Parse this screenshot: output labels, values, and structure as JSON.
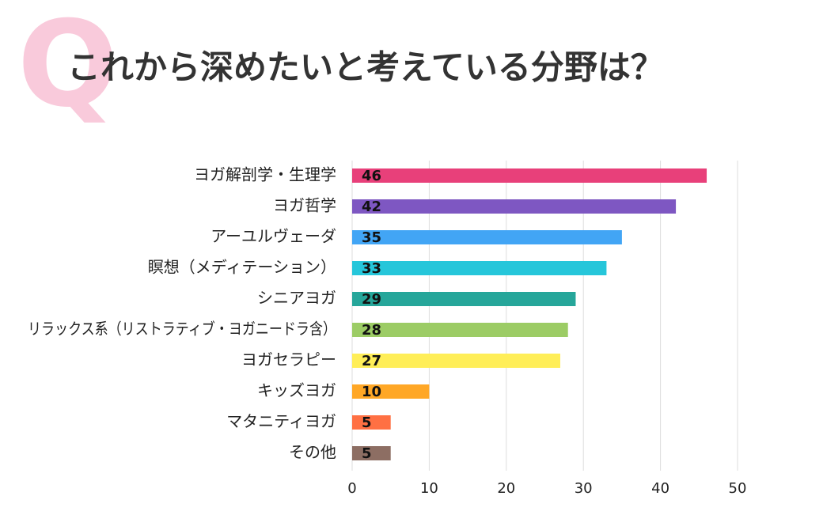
{
  "chart_data": {
    "type": "barh",
    "mark": "Q",
    "title": "これから深めたいと考えている分野は？",
    "categories": [
      "ヨガ解剖学・生理学",
      "ヨガ哲学",
      "アーユルヴェーダ",
      "瞑想（メディテーション）",
      "シニアヨガ",
      "リラックス系（リストラティブ・ヨガニードラ含）",
      "ヨガセラピー",
      "キッズヨガ",
      "マタニティヨガ",
      "その他"
    ],
    "values": [
      46,
      42,
      35,
      33,
      29,
      28,
      27,
      10,
      5,
      5
    ],
    "colors": [
      "#e8407a",
      "#7e57c2",
      "#42a5f5",
      "#26c6da",
      "#26a69a",
      "#9ccc65",
      "#ffee58",
      "#ffa726",
      "#ff7043",
      "#8d6e63"
    ],
    "xlim": [
      0,
      50
    ],
    "xticks": [
      0,
      10,
      20,
      30,
      40,
      50
    ],
    "grid": true
  }
}
